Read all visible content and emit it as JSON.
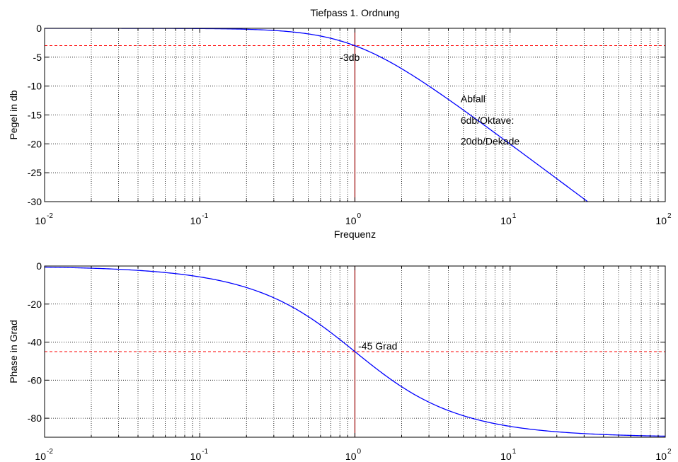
{
  "chart_data": [
    {
      "type": "line",
      "title": "Tiefpass 1. Ordnung",
      "xlabel": "Frequenz",
      "ylabel": "Pegel in db",
      "xscale": "log",
      "xlim": [
        0.01,
        100
      ],
      "ylim": [
        -30,
        0
      ],
      "grid": true,
      "x_ticks": [
        0.01,
        0.1,
        1,
        10,
        100
      ],
      "x_tick_labels": [
        {
          "base": "10",
          "exp": "-2"
        },
        {
          "base": "10",
          "exp": "-1"
        },
        {
          "base": "10",
          "exp": "0"
        },
        {
          "base": "10",
          "exp": "1"
        },
        {
          "base": "10",
          "exp": "2"
        }
      ],
      "y_ticks": [
        0,
        -5,
        -10,
        -15,
        -20,
        -25,
        -30
      ],
      "y_tick_labels": [
        "0",
        "-5",
        "-10",
        "-15",
        "-20",
        "-25",
        "-30"
      ],
      "series": [
        {
          "function": "magnitude_db_first_order_lowpass",
          "x": [
            0.01,
            0.03,
            0.1,
            0.2,
            0.3,
            0.5,
            0.7,
            1,
            1.5,
            2,
            3,
            5,
            10,
            20,
            31.6
          ],
          "y": [
            0,
            0,
            -0.04,
            -0.17,
            -0.37,
            -0.97,
            -1.74,
            -3.01,
            -5.12,
            -6.99,
            -10,
            -14.15,
            -20.04,
            -26.03,
            -30
          ],
          "color": "#0000ff"
        }
      ],
      "reference_lines": [
        {
          "orientation": "horizontal",
          "value": -3,
          "color": "#ff0000",
          "style": "dashed"
        },
        {
          "orientation": "vertical",
          "value": 1,
          "color": "#990000",
          "style": "solid"
        }
      ],
      "annotations": [
        {
          "text": "-3db",
          "x": 0.8,
          "y": -5
        },
        {
          "text": "Abfall",
          "x": 4.8,
          "y": -12.2
        },
        {
          "text": "6db/Oktave:",
          "x": 4.8,
          "y": -15.9
        },
        {
          "text": "20db/Dekade",
          "x": 4.8,
          "y": -19.5
        }
      ]
    },
    {
      "type": "line",
      "title": "",
      "xlabel": "",
      "ylabel": "Phase in Grad",
      "xscale": "log",
      "xlim": [
        0.01,
        100
      ],
      "ylim": [
        -90,
        0
      ],
      "grid": true,
      "x_ticks": [
        0.01,
        0.1,
        1,
        10,
        100
      ],
      "x_tick_labels": [
        {
          "base": "10",
          "exp": "-2"
        },
        {
          "base": "10",
          "exp": "-1"
        },
        {
          "base": "10",
          "exp": "0"
        },
        {
          "base": "10",
          "exp": "1"
        },
        {
          "base": "10",
          "exp": "2"
        }
      ],
      "y_ticks": [
        0,
        -20,
        -40,
        -60,
        -80
      ],
      "y_tick_labels": [
        "0",
        "-20",
        "-40",
        "-60",
        "-80"
      ],
      "series": [
        {
          "function": "phase_deg_first_order_lowpass",
          "x": [
            0.01,
            0.03,
            0.1,
            0.2,
            0.3,
            0.5,
            0.7,
            1,
            1.5,
            2,
            3,
            5,
            10,
            30,
            100
          ],
          "y": [
            -0.57,
            -1.72,
            -5.71,
            -11.31,
            -16.7,
            -26.57,
            -34.99,
            -45,
            -56.31,
            -63.43,
            -71.57,
            -78.69,
            -84.29,
            -88.09,
            -89.43
          ],
          "color": "#0000ff"
        }
      ],
      "reference_lines": [
        {
          "orientation": "horizontal",
          "value": -45,
          "color": "#ff0000",
          "style": "dashed"
        },
        {
          "orientation": "vertical",
          "value": 1,
          "color": "#990000",
          "style": "solid"
        }
      ],
      "annotations": [
        {
          "text": "-45 Grad",
          "x": 1.05,
          "y": -42
        }
      ]
    }
  ]
}
